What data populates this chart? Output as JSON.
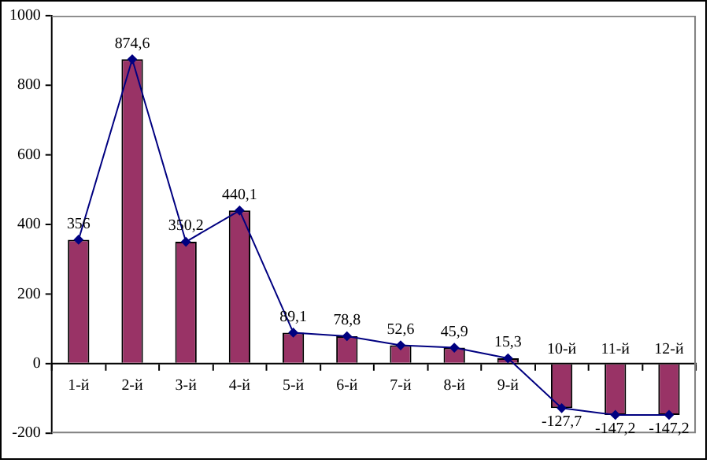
{
  "chart_data": {
    "type": "bar",
    "categories": [
      "1-й",
      "2-й",
      "3-й",
      "4-й",
      "5-й",
      "6-й",
      "7-й",
      "8-й",
      "9-й",
      "10-й",
      "11-й",
      "12-й"
    ],
    "series": [
      {
        "color": "#993366",
        "values": [
          356,
          874.6,
          350.2,
          440.1,
          89.1,
          78.8,
          52.6,
          45.9,
          15.3,
          -127.7,
          -147.2,
          -147.2
        ],
        "value_labels": [
          "356",
          "874,6",
          "350,2",
          "440,1",
          "89,1",
          "78,8",
          "52,6",
          "45,9",
          "15,3",
          "-127,7",
          "-147,2",
          "-147,2"
        ]
      },
      {
        "type": "line",
        "color": "#000080",
        "values": [
          356,
          874.6,
          350.2,
          440.1,
          89.1,
          78.8,
          52.6,
          45.9,
          15.3,
          -127.7,
          -147.2,
          -147.2
        ]
      }
    ],
    "ylim": [
      -200,
      1000
    ],
    "yticks": [
      -200,
      0,
      200,
      400,
      600,
      800,
      1000
    ],
    "grid": false,
    "legend": false,
    "marker": "diamond",
    "line_style": "solid"
  }
}
